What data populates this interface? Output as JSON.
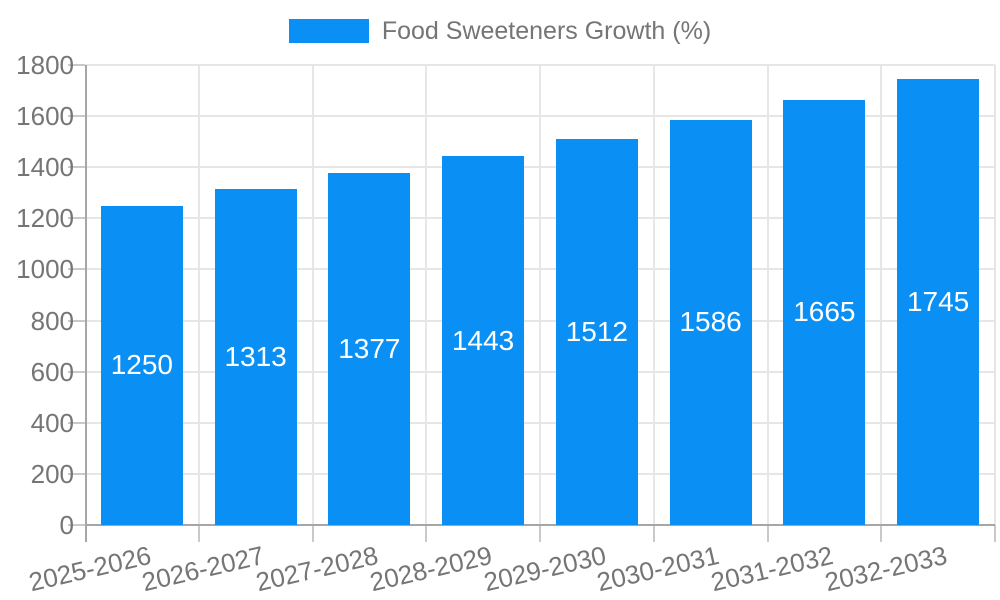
{
  "chart_data": {
    "type": "bar",
    "title": "Food Sweeteners Growth (%)",
    "categories": [
      "2025-2026",
      "2026-2027",
      "2027-2028",
      "2028-2029",
      "2029-2030",
      "2030-2031",
      "2031-2032",
      "2032-2033"
    ],
    "series": [
      {
        "name": "Food Sweeteners Growth (%)",
        "values": [
          1250,
          1313,
          1377,
          1443,
          1512,
          1586,
          1665,
          1745
        ]
      }
    ],
    "xlabel": "",
    "ylabel": "",
    "ylim": [
      0,
      1800
    ],
    "yticks": [
      0,
      200,
      400,
      600,
      800,
      1000,
      1200,
      1400,
      1600,
      1800
    ],
    "grid": true,
    "legend_position": "top",
    "x_tick_rotation_deg": -13,
    "bar_value_labels_shown": true,
    "colors": {
      "bar": "#0a90f4",
      "bar_value_text": "#ffffff",
      "axis_text": "#757575",
      "grid_line": "#e6e6e6",
      "axis_line": "#a6a6a6",
      "tick_mark": "#c9c9c9",
      "background": "#ffffff"
    }
  }
}
